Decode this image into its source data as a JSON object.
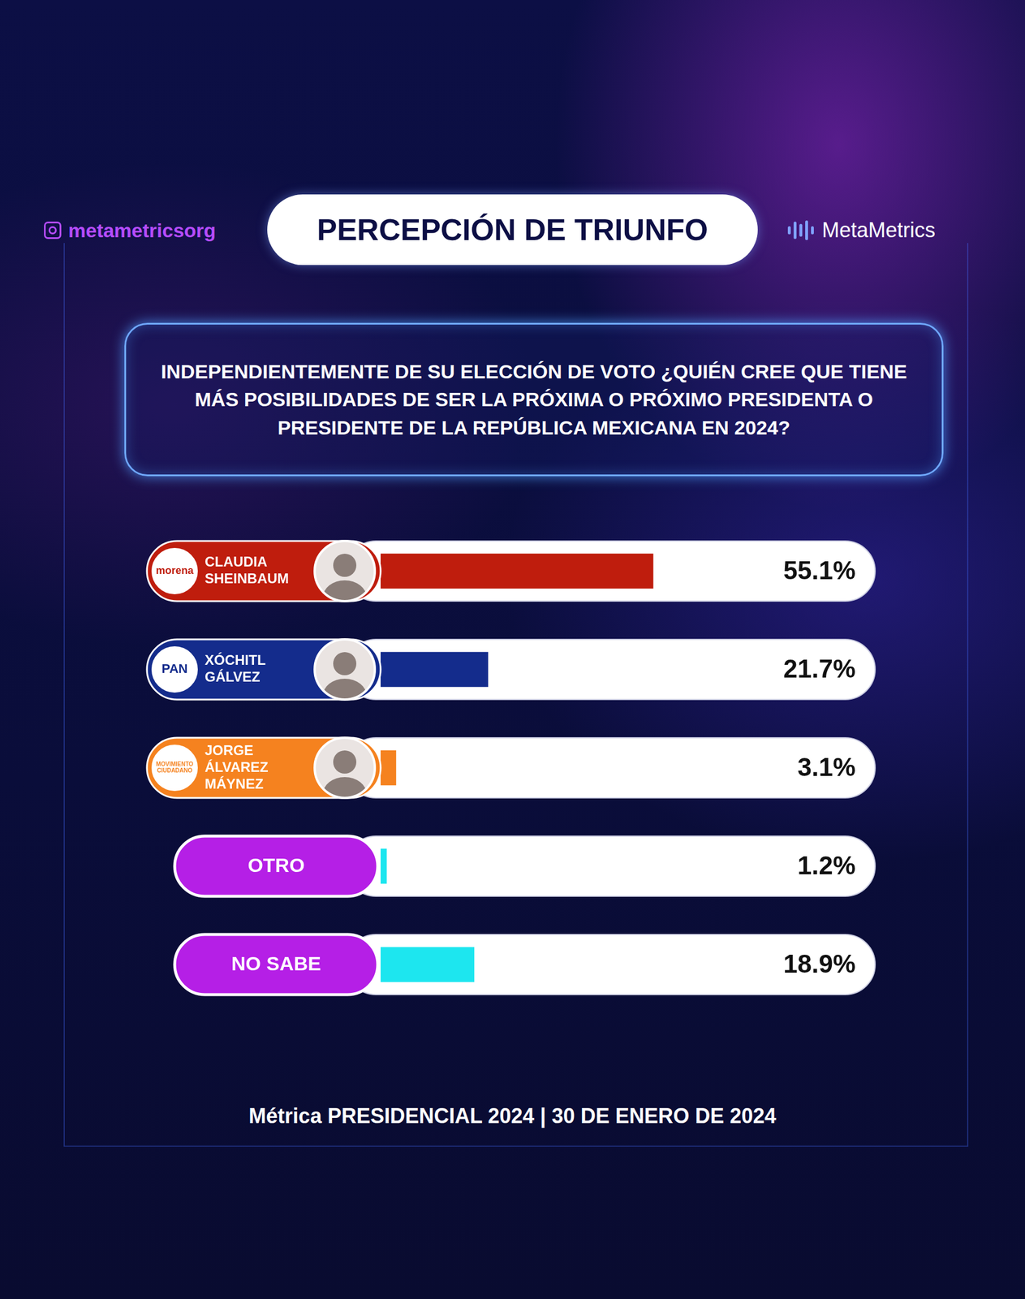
{
  "handle": "metametricsorg",
  "brand": "MetaMetrics",
  "chart_data": {
    "type": "bar",
    "orientation": "horizontal",
    "title": "PERCEPCIÓN DE TRIUNFO",
    "subtitle": "INDEPENDIENTEMENTE DE SU ELECCIÓN DE VOTO ¿QUIÉN CREE QUE TIENE MÁS POSIBILIDADES DE SER LA PRÓXIMA O PRÓXIMO PRESIDENTA O PRESIDENTE DE LA REPÚBLICA MEXICANA EN 2024?",
    "categories": [
      "CLAUDIA SHEINBAUM",
      "XÓCHITL GÁLVEZ",
      "JORGE ÁLVAREZ MÁYNEZ",
      "OTRO",
      "NO SABE"
    ],
    "parties": [
      "morena",
      "PAN",
      "MOVIMIENTO CIUDADANO",
      null,
      null
    ],
    "values": [
      55.1,
      21.7,
      3.1,
      1.2,
      18.9
    ],
    "value_labels": [
      "55.1%",
      "21.7%",
      "3.1%",
      "1.2%",
      "18.9%"
    ],
    "colors": [
      "#bf1d0d",
      "#142c8c",
      "#f5821f",
      "#1de6ef",
      "#1de6ef"
    ],
    "xlim": [
      0,
      100
    ],
    "grid": false,
    "tick_labels": false,
    "data_labels": true
  },
  "footer": "Métrica PRESIDENCIAL 2024 | 30 DE ENERO DE 2024"
}
